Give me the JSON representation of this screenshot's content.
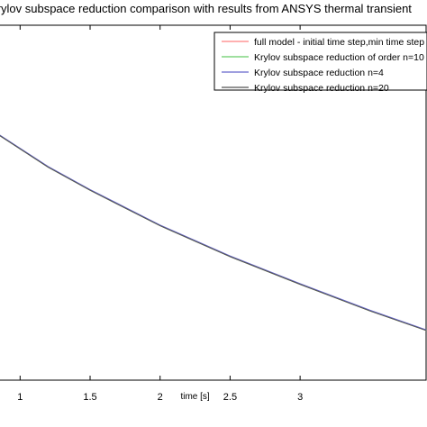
{
  "chart_data": {
    "type": "line",
    "title": "Krylov subspace reduction comparison with results from ANSYS thermal transient",
    "xlabel": "time [s]",
    "ylabel": "",
    "xlim": [
      0.85,
      3.9
    ],
    "ylim": [
      0,
      1
    ],
    "x_ticks": [
      1,
      1.5,
      2,
      2.5,
      3
    ],
    "x_tick_labels": [
      "1",
      "1.5",
      "2",
      "2.5",
      "3"
    ],
    "grid": false,
    "legend_position": "top-right",
    "series": [
      {
        "name": "full model - initial time step,min time step",
        "color": "#ff8080",
        "x": [
          0.85,
          1.2,
          1.5,
          2.0,
          2.5,
          3.0,
          3.5,
          3.9
        ],
        "y": [
          0.69,
          0.6,
          0.535,
          0.435,
          0.348,
          0.27,
          0.195,
          0.14
        ]
      },
      {
        "name": "Krylov subspace reduction of order n=10",
        "color": "#66cc66",
        "x": [
          0.85,
          1.2,
          1.5,
          2.0,
          2.5,
          3.0,
          3.5,
          3.9
        ],
        "y": [
          0.69,
          0.6,
          0.535,
          0.435,
          0.348,
          0.27,
          0.195,
          0.14
        ]
      },
      {
        "name": "Krylov subspace reduction n=4",
        "color": "#6666cc",
        "x": [
          0.85,
          1.2,
          1.5,
          2.0,
          2.5,
          3.0,
          3.5,
          3.9
        ],
        "y": [
          0.692,
          0.602,
          0.537,
          0.437,
          0.35,
          0.272,
          0.197,
          0.142
        ]
      },
      {
        "name": "Krylov subspace reduction n=20",
        "color": "#555555",
        "x": [
          0.85,
          1.2,
          1.5,
          2.0,
          2.5,
          3.0,
          3.5,
          3.9
        ],
        "y": [
          0.69,
          0.6,
          0.535,
          0.435,
          0.348,
          0.27,
          0.195,
          0.14
        ]
      }
    ]
  }
}
